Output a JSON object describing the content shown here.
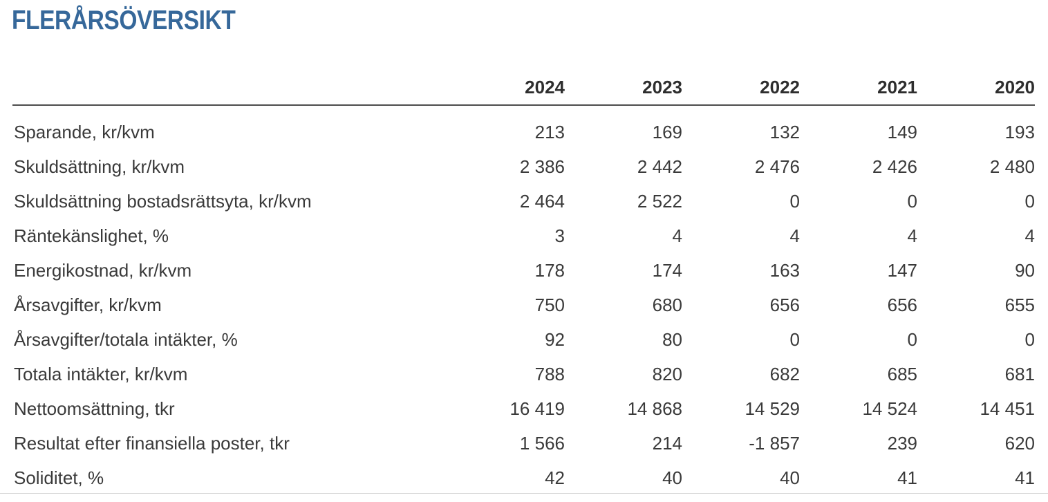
{
  "page": {
    "title": "FLERÅRSÖVERSIKT"
  },
  "colors": {
    "title_blue": "#36689A",
    "body_text": "#3A3A3A",
    "header_text": "#2E2E2E",
    "header_rule": "#4C4C4C",
    "bottom_rule": "#D4D4D4"
  },
  "table": {
    "columns": [
      "2024",
      "2023",
      "2022",
      "2021",
      "2020"
    ],
    "rows": [
      {
        "label": "Sparande, kr/kvm",
        "values": [
          "213",
          "169",
          "132",
          "149",
          "193"
        ]
      },
      {
        "label": "Skuldsättning, kr/kvm",
        "values": [
          "2 386",
          "2 442",
          "2 476",
          "2 426",
          "2 480"
        ]
      },
      {
        "label": "Skuldsättning bostadsrättsyta, kr/kvm",
        "values": [
          "2 464",
          "2 522",
          "0",
          "0",
          "0"
        ]
      },
      {
        "label": "Räntekänslighet, %",
        "values": [
          "3",
          "4",
          "4",
          "4",
          "4"
        ]
      },
      {
        "label": "Energikostnad, kr/kvm",
        "values": [
          "178",
          "174",
          "163",
          "147",
          "90"
        ]
      },
      {
        "label": "Årsavgifter, kr/kvm",
        "values": [
          "750",
          "680",
          "656",
          "656",
          "655"
        ]
      },
      {
        "label": "Årsavgifter/totala intäkter, %",
        "values": [
          "92",
          "80",
          "0",
          "0",
          "0"
        ]
      },
      {
        "label": "Totala intäkter, kr/kvm",
        "values": [
          "788",
          "820",
          "682",
          "685",
          "681"
        ]
      },
      {
        "label": "Nettoomsättning, tkr",
        "values": [
          "16 419",
          "14 868",
          "14 529",
          "14 524",
          "14 451"
        ]
      },
      {
        "label": "Resultat efter finansiella poster, tkr",
        "values": [
          "1 566",
          "214",
          "-1 857",
          "239",
          "620"
        ]
      },
      {
        "label": "Soliditet, %",
        "values": [
          "42",
          "40",
          "40",
          "41",
          "41"
        ]
      }
    ]
  }
}
